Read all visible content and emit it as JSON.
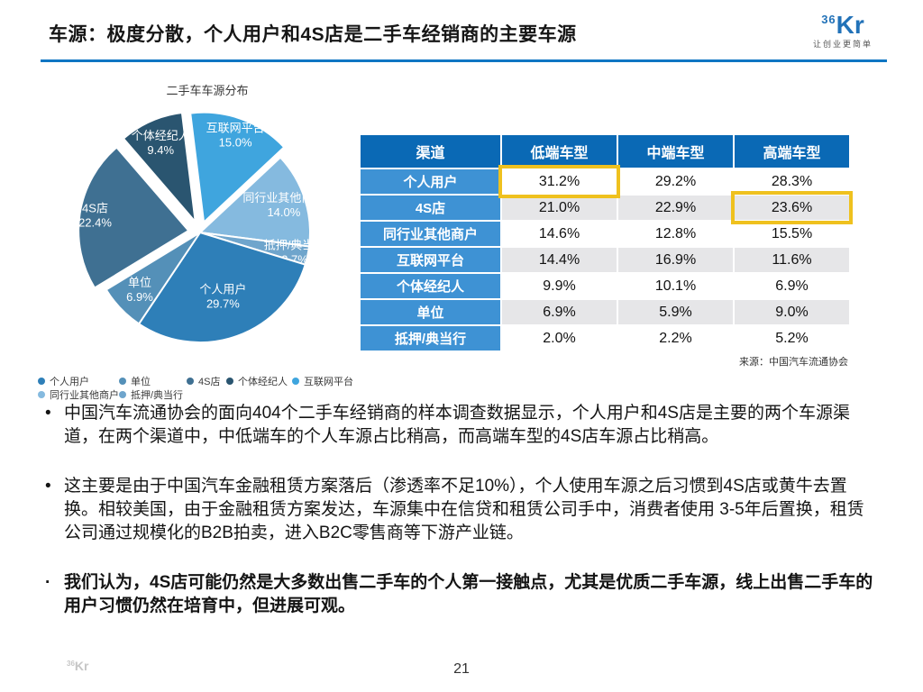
{
  "header": {
    "title": "车源：极度分散，个人用户和4S店是二手车经销商的主要车源",
    "logo": {
      "sup": "36",
      "main": "Kr",
      "tagline": "让创业更简单",
      "color": "#2272B8"
    }
  },
  "chart_data": [
    {
      "type": "pie",
      "title": "二手车车源分布",
      "start_angle_deg": -7,
      "legend_position": "bottom-left",
      "slices": [
        {
          "name": "互联网平台",
          "value": 15.0,
          "label": "15.0%",
          "color": "#3FA5DE",
          "explode": 12,
          "label_r": 0.84
        },
        {
          "name": "同行业其他商户",
          "value": 14.0,
          "label": "14.0%",
          "color": "#85BADF",
          "explode": 0,
          "label_r": 0.8
        },
        {
          "name": "抵押/典当行",
          "value": 2.7,
          "label": "2.7%",
          "color": "#6FA5CC",
          "explode": 0,
          "label_r": 0.88
        },
        {
          "name": "个人用户",
          "value": 29.7,
          "label": "29.7%",
          "color": "#2E7FB8",
          "explode": 0,
          "label_r": 0.62
        },
        {
          "name": "单位",
          "value": 6.9,
          "label": "6.9%",
          "color": "#5490B8",
          "explode": 0,
          "label_r": 0.76
        },
        {
          "name": "4S店",
          "value": 22.4,
          "label": "22.4%",
          "color": "#3F7092",
          "explode": 13,
          "label_r": 0.86
        },
        {
          "name": "个体经纪人",
          "value": 9.4,
          "label": "9.4%",
          "color": "#2A5570",
          "explode": 13,
          "label_r": 0.78
        }
      ],
      "legend_rows": [
        [
          "个人用户",
          "单位",
          "4S店",
          "个体经纪人",
          "互联网平台"
        ],
        [
          "同行业其他商户",
          "抵押/典当行"
        ]
      ]
    },
    {
      "type": "table",
      "columns": [
        "渠道",
        "低端车型",
        "中端车型",
        "高端车型"
      ],
      "rows": [
        {
          "label": "个人用户",
          "values": [
            "31.2%",
            "29.2%",
            "28.3%"
          ]
        },
        {
          "label": "4S店",
          "values": [
            "21.0%",
            "22.9%",
            "23.6%"
          ]
        },
        {
          "label": "同行业其他商户",
          "values": [
            "14.6%",
            "12.8%",
            "15.5%"
          ]
        },
        {
          "label": "互联网平台",
          "values": [
            "14.4%",
            "16.9%",
            "11.6%"
          ]
        },
        {
          "label": "个体经纪人",
          "values": [
            "9.9%",
            "10.1%",
            "6.9%"
          ]
        },
        {
          "label": "单位",
          "values": [
            "6.9%",
            "5.9%",
            "9.0%"
          ]
        },
        {
          "label": "抵押/典当行",
          "values": [
            "2.0%",
            "2.2%",
            "5.2%"
          ]
        }
      ],
      "highlights": [
        {
          "row": 0,
          "col": 0
        },
        {
          "row": 1,
          "col": 2
        }
      ],
      "source": "来源：中国汽车流通协会"
    }
  ],
  "bullets": [
    {
      "marker": "•",
      "bold": false,
      "text": "中国汽车流通协会的面向404个二手车经销商的样本调查数据显示，个人用户和4S店是主要的两个车源渠道，在两个渠道中，中低端车的个人车源占比稍高，而高端车型的4S店车源占比稍高。"
    },
    {
      "marker": "•",
      "bold": false,
      "text": "这主要是由于中国汽车金融租赁方案落后（渗透率不足10%），个人使用车源之后习惯到4S店或黄牛去置换。相较美国，由于金融租赁方案发达，车源集中在信贷和租赁公司手中，消费者使用 3-5年后置换，租赁公司通过规模化的B2B拍卖，进入B2C零售商等下游产业链。"
    },
    {
      "marker": "·",
      "bold": true,
      "text": "我们认为，4S店可能仍然是大多数出售二手车的个人第一接触点，尤其是优质二手车源，线上出售二手车的用户习惯仍然在培育中，但进展可观。"
    }
  ],
  "footer": {
    "watermark_sup": "36",
    "watermark_main": "Kr",
    "page_number": "21"
  },
  "colors": {
    "accent_rule": "#0F76C3",
    "table_header_bg": "#0A69B5",
    "table_label_bg": "#3E92D4",
    "table_alt_row_bg": "#E6E6E8",
    "highlight_border": "#EFC11E",
    "logo_blue": "#2272B8"
  }
}
